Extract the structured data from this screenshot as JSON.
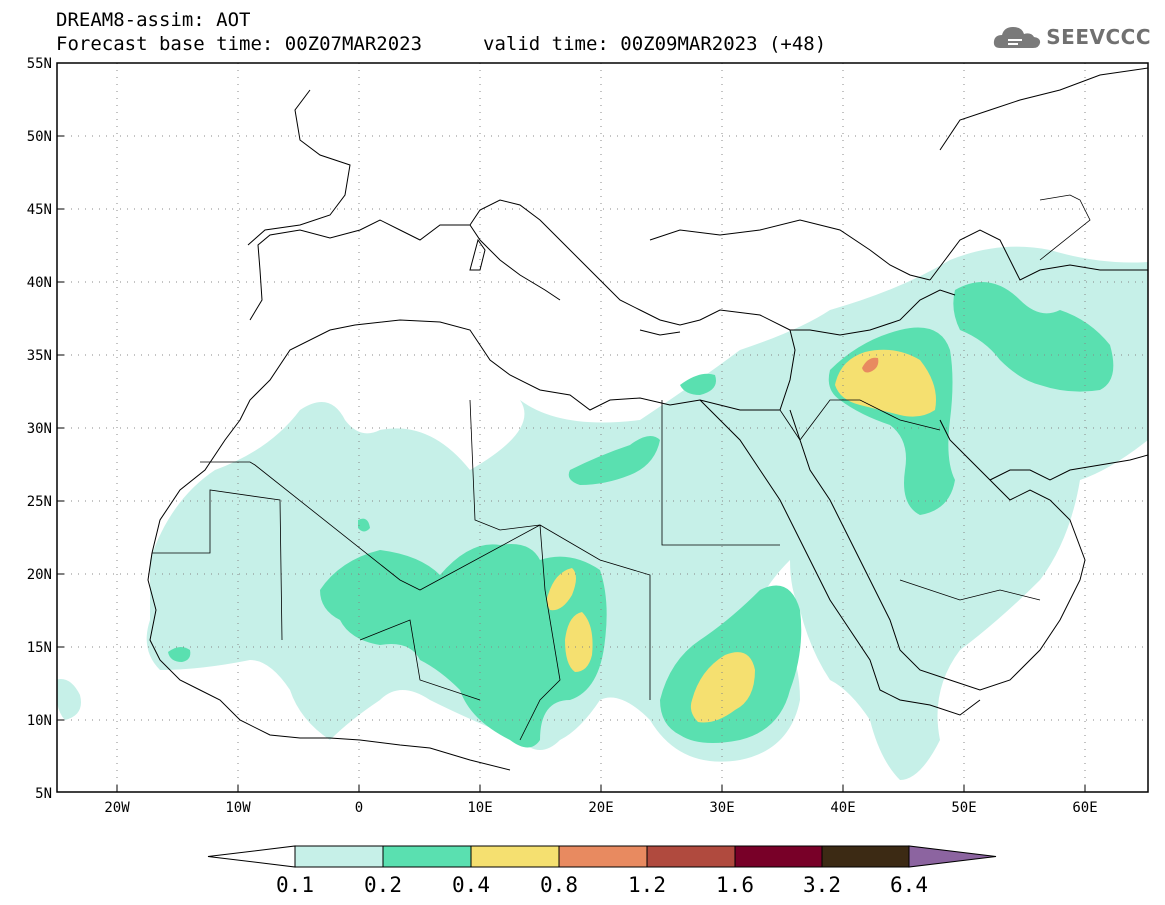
{
  "header": {
    "title": "DREAM8-assim: AOT",
    "base_time": "Forecast base time: 00Z07MAR2023",
    "valid_time": "valid time: 00Z09MAR2023 (+48)"
  },
  "logo": {
    "icon": "cloud-icon",
    "text": "SEEVCCC"
  },
  "axes": {
    "lat_labels": [
      "55N",
      "50N",
      "45N",
      "40N",
      "35N",
      "30N",
      "25N",
      "20N",
      "15N",
      "10N",
      "5N"
    ],
    "lon_labels": [
      "20W",
      "10W",
      "0",
      "10E",
      "20E",
      "30E",
      "40E",
      "50E",
      "60E"
    ],
    "lat_range": [
      5,
      55
    ],
    "lon_range": [
      -25,
      65
    ],
    "grid": "dotted"
  },
  "colorbar": {
    "labels": [
      "0.1",
      "0.2",
      "0.4",
      "0.8",
      "1.2",
      "1.6",
      "3.2",
      "6.4"
    ],
    "colors": [
      "#ffffff",
      "#c6f0e8",
      "#5ae0b0",
      "#f5e070",
      "#e88a60",
      "#b04a3e",
      "#780028",
      "#3c2a14",
      "#8c64a0"
    ]
  }
}
